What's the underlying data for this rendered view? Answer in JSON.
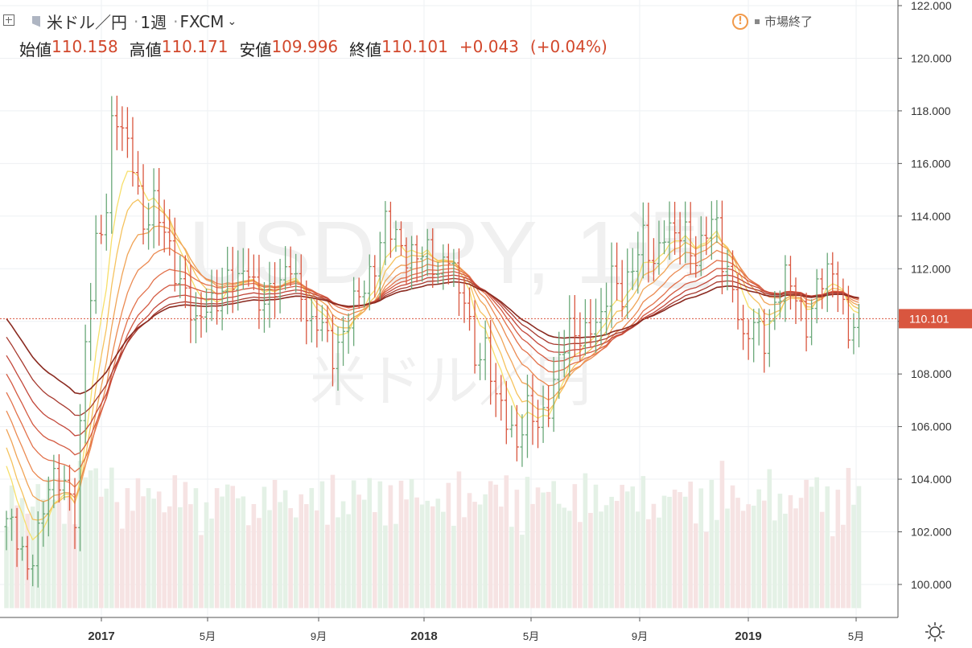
{
  "header": {
    "symbol_name": "米ドル／円",
    "sep": "·",
    "interval": "1週",
    "source": "FXCM",
    "ohlc": [
      {
        "label": "始値",
        "value": "110.158"
      },
      {
        "label": "高値",
        "value": "110.171"
      },
      {
        "label": "安値",
        "value": "109.996"
      },
      {
        "label": "終値",
        "value": "110.101"
      }
    ],
    "change": "+0.043",
    "change_pct": "(+0.04%)",
    "market_status": "市場終了"
  },
  "watermark": {
    "line1": "USDJPY, 1週",
    "line2": "米ドル／円"
  },
  "colors": {
    "up": "#6aa879",
    "down": "#d9563f",
    "price_line": "#d9563f",
    "ribbon": [
      "#f7df6a",
      "#f5c25e",
      "#f0a457",
      "#eb8a52",
      "#e2714b",
      "#d35a42",
      "#c2473a",
      "#a73a2f",
      "#8a2a20"
    ]
  },
  "chart_data": {
    "type": "candlestick",
    "title": "USDJPY, 1週",
    "y_axis": {
      "min": 100,
      "max": 122,
      "ticks": [
        "100.000",
        "102.000",
        "104.000",
        "106.000",
        "108.000",
        "110.000",
        "112.000",
        "114.000",
        "116.000",
        "118.000",
        "120.000",
        "122.000"
      ]
    },
    "x_axis": {
      "ticks": [
        "2017",
        "5月",
        "9月",
        "2018",
        "5月",
        "9月",
        "2019",
        "5月"
      ]
    },
    "last_price": "110.101",
    "anchors": [
      [
        0,
        102.5
      ],
      [
        4,
        100.6
      ],
      [
        8,
        103.6
      ],
      [
        11,
        104.0
      ],
      [
        13,
        102.8
      ],
      [
        15,
        109.0
      ],
      [
        17,
        112.8
      ],
      [
        19,
        114.5
      ],
      [
        20,
        117.6
      ],
      [
        21,
        117.8
      ],
      [
        22,
        117.0
      ],
      [
        24,
        116.0
      ],
      [
        26,
        113.8
      ],
      [
        28,
        114.5
      ],
      [
        30,
        113.2
      ],
      [
        32,
        112.0
      ],
      [
        34,
        111.3
      ],
      [
        36,
        109.6
      ],
      [
        38,
        110.5
      ],
      [
        40,
        111.0
      ],
      [
        42,
        111.6
      ],
      [
        44,
        111.3
      ],
      [
        46,
        112.2
      ],
      [
        48,
        110.8
      ],
      [
        50,
        110.8
      ],
      [
        52,
        111.4
      ],
      [
        54,
        112.5
      ],
      [
        56,
        110.8
      ],
      [
        58,
        109.5
      ],
      [
        60,
        110.2
      ],
      [
        62,
        108.8
      ],
      [
        64,
        109.2
      ],
      [
        66,
        110.7
      ],
      [
        68,
        111.6
      ],
      [
        70,
        112.0
      ],
      [
        72,
        113.6
      ],
      [
        74,
        113.4
      ],
      [
        76,
        112.6
      ],
      [
        78,
        112.3
      ],
      [
        80,
        112.6
      ],
      [
        82,
        112.0
      ],
      [
        84,
        112.6
      ],
      [
        86,
        110.8
      ],
      [
        87,
        111.0
      ],
      [
        89,
        108.8
      ],
      [
        91,
        108.9
      ],
      [
        93,
        106.9
      ],
      [
        95,
        106.5
      ],
      [
        97,
        105.4
      ],
      [
        99,
        106.5
      ],
      [
        101,
        106.0
      ],
      [
        103,
        107.0
      ],
      [
        105,
        108.5
      ],
      [
        107,
        109.5
      ],
      [
        109,
        109.5
      ],
      [
        111,
        110.0
      ],
      [
        113,
        109.8
      ],
      [
        115,
        111.8
      ],
      [
        117,
        111.2
      ],
      [
        119,
        112.0
      ],
      [
        121,
        113.0
      ],
      [
        123,
        112.3
      ],
      [
        125,
        113.6
      ],
      [
        127,
        113.1
      ],
      [
        129,
        113.3
      ],
      [
        131,
        112.5
      ],
      [
        133,
        113.5
      ],
      [
        135,
        113.5
      ],
      [
        136,
        112.3
      ],
      [
        138,
        111.5
      ],
      [
        139,
        110.5
      ],
      [
        140,
        109.0
      ],
      [
        142,
        109.8
      ],
      [
        144,
        109.4
      ],
      [
        146,
        110.7
      ],
      [
        148,
        111.5
      ],
      [
        150,
        111.0
      ],
      [
        152,
        110.0
      ],
      [
        154,
        111.2
      ],
      [
        156,
        111.7
      ],
      [
        158,
        111.7
      ],
      [
        160,
        109.6
      ],
      [
        162,
        110.1
      ]
    ],
    "volume_range": [
      100,
      104.7
    ]
  }
}
